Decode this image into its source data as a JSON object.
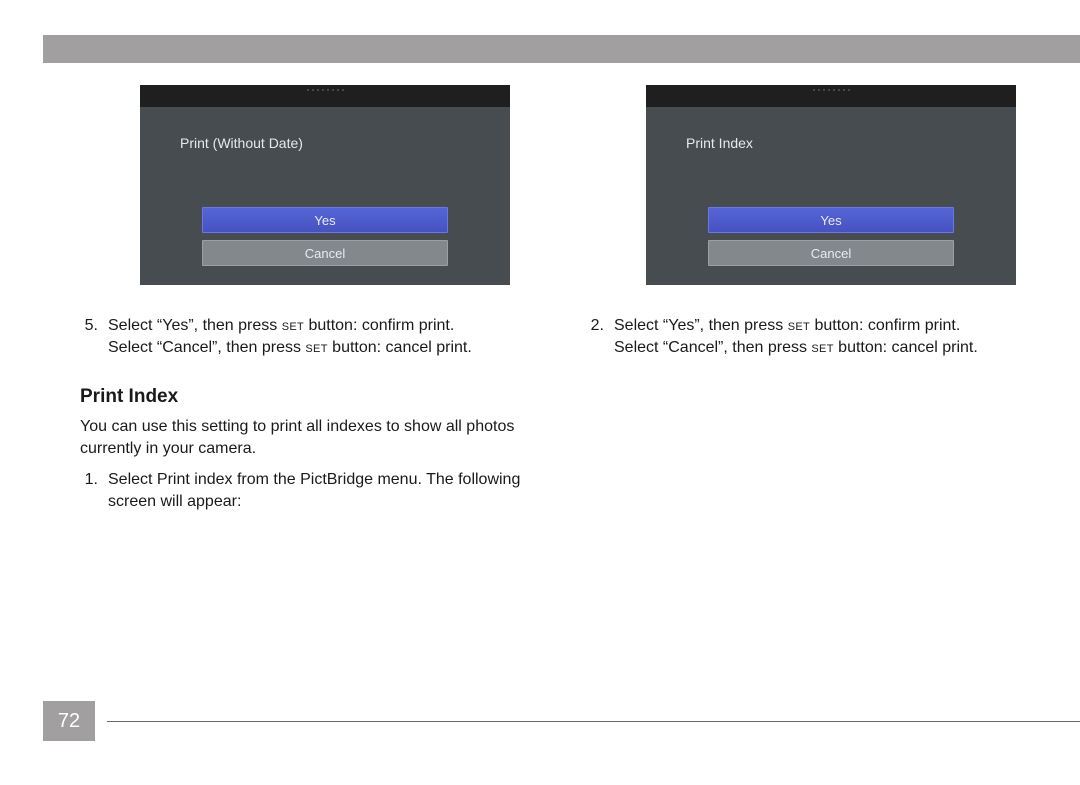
{
  "page": {
    "number": "72"
  },
  "colors": {
    "band": "#a19f9f",
    "camera_body": "#464c4f",
    "camera_topbar": "#1f1f1f",
    "yes_btn": "#4d5cca",
    "cancel_btn": "#82898c",
    "text": "#1a1a1a"
  },
  "left": {
    "screen": {
      "title": "Print (Without Date)",
      "option_yes": "Yes",
      "option_cancel": "Cancel"
    },
    "step5": {
      "num": "5.",
      "l1_a": "Select “Yes”, then press ",
      "l1_set": "set",
      "l1_b": " button: confirm print.",
      "l2_a": "Select “Cancel”, then press ",
      "l2_set": "set",
      "l2_b": " button: cancel print."
    },
    "heading": "Print Index",
    "intro": "You can use this setting to print all indexes to show all photos currently in your camera.",
    "step1": {
      "num": "1.",
      "text": "Select Print index from the PictBridge menu. The following screen will appear:"
    }
  },
  "right": {
    "screen": {
      "title": "Print Index",
      "option_yes": "Yes",
      "option_cancel": "Cancel"
    },
    "step2": {
      "num": "2.",
      "l1_a": "Select “Yes”, then press ",
      "l1_set": "set",
      "l1_b": " button: confirm print.",
      "l2_a": "Select “Cancel”, then press ",
      "l2_set": "set",
      "l2_b": " button: cancel print."
    }
  }
}
